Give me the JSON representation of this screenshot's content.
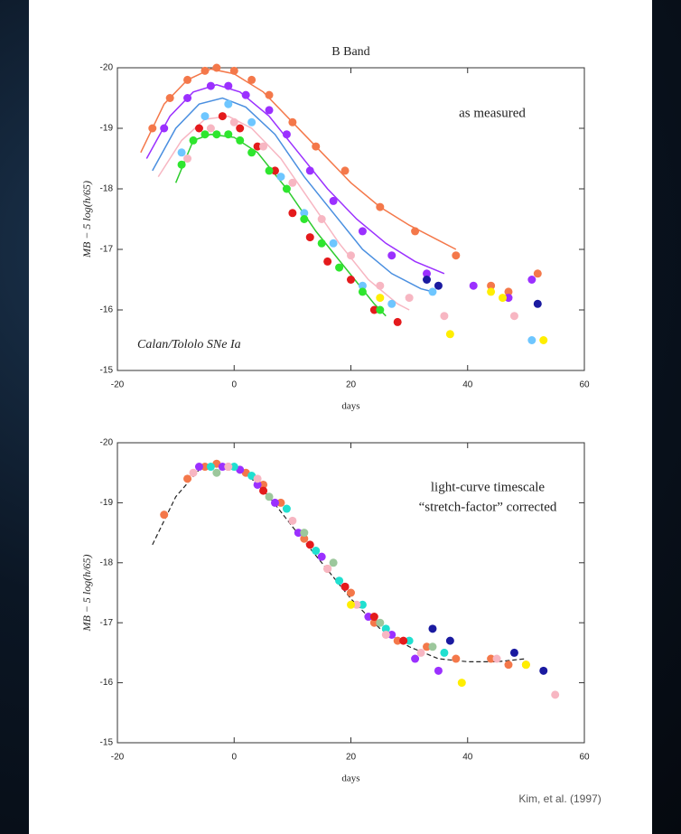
{
  "chart_data": [
    {
      "type": "scatter",
      "title": "B Band",
      "annotation": [
        "as measured"
      ],
      "note": "Calan/Tololo SNe Ia",
      "xlabel": "days",
      "ylabel": "MB − 5 log(h/65)",
      "xlim": [
        -20,
        60
      ],
      "ylim": [
        -20,
        -15
      ],
      "y_inverted": true,
      "xticks": [
        -20,
        0,
        20,
        40,
        60
      ],
      "yticks": [
        -20,
        -19,
        -18,
        -17,
        -16,
        -15
      ],
      "series": [
        {
          "kind": "line",
          "color": "#f4784a",
          "x": [
            -16,
            -12,
            -8,
            -4,
            0,
            5,
            10,
            15,
            20,
            25,
            30,
            35,
            38
          ],
          "values": [
            -18.6,
            -19.4,
            -19.8,
            -19.98,
            -19.9,
            -19.6,
            -19.1,
            -18.6,
            -18.1,
            -17.7,
            -17.4,
            -17.15,
            -17.0
          ]
        },
        {
          "kind": "line",
          "color": "#9b30ff",
          "x": [
            -15,
            -11,
            -7,
            -3,
            1,
            6,
            11,
            16,
            21,
            26,
            31,
            36
          ],
          "values": [
            -18.5,
            -19.2,
            -19.6,
            -19.72,
            -19.6,
            -19.2,
            -18.6,
            -18.0,
            -17.5,
            -17.1,
            -16.8,
            -16.6
          ]
        },
        {
          "kind": "line",
          "color": "#4a8fe0",
          "x": [
            -14,
            -10,
            -6,
            -2,
            2,
            7,
            12,
            17,
            22,
            27,
            32,
            34
          ],
          "values": [
            -18.3,
            -19.0,
            -19.4,
            -19.5,
            -19.35,
            -18.9,
            -18.2,
            -17.6,
            -17.0,
            -16.6,
            -16.35,
            -16.3
          ]
        },
        {
          "kind": "line",
          "color": "#f7b6c2",
          "x": [
            -13,
            -9,
            -5,
            -1,
            3,
            8,
            13,
            18,
            23,
            28,
            30
          ],
          "values": [
            -18.2,
            -18.8,
            -19.15,
            -19.2,
            -19.0,
            -18.5,
            -17.8,
            -17.1,
            -16.5,
            -16.1,
            -16.0
          ]
        },
        {
          "kind": "line",
          "color": "#2ecc2e",
          "x": [
            -10,
            -7,
            -4,
            0,
            4,
            9,
            14,
            19,
            24,
            26
          ],
          "values": [
            -18.1,
            -18.8,
            -18.9,
            -18.85,
            -18.6,
            -18.0,
            -17.3,
            -16.7,
            -16.1,
            -15.9
          ]
        },
        {
          "kind": "points",
          "color": "#f4784a",
          "x": [
            -14,
            -11,
            -8,
            -5,
            -3,
            0,
            3,
            6,
            10,
            14,
            19,
            25,
            31,
            38,
            44,
            47,
            52
          ],
          "values": [
            -19.0,
            -19.5,
            -19.8,
            -19.95,
            -20.0,
            -19.95,
            -19.8,
            -19.55,
            -19.1,
            -18.7,
            -18.3,
            -17.7,
            -17.3,
            -16.9,
            -16.4,
            -16.3,
            -16.6
          ]
        },
        {
          "kind": "points",
          "color": "#9b30ff",
          "x": [
            -12,
            -8,
            -4,
            -1,
            2,
            6,
            9,
            13,
            17,
            22,
            27,
            33,
            41,
            47,
            51
          ],
          "values": [
            -19.0,
            -19.5,
            -19.7,
            -19.7,
            -19.55,
            -19.3,
            -18.9,
            -18.3,
            -17.8,
            -17.3,
            -16.9,
            -16.6,
            -16.4,
            -16.2,
            -16.5
          ]
        },
        {
          "kind": "points",
          "color": "#e41a1c",
          "x": [
            -6,
            -2,
            1,
            4,
            7,
            10,
            13,
            16,
            20,
            24,
            28
          ],
          "values": [
            -19.0,
            -19.2,
            -19.0,
            -18.7,
            -18.3,
            -17.6,
            -17.2,
            -16.8,
            -16.5,
            -16.0,
            -15.8
          ]
        },
        {
          "kind": "points",
          "color": "#6ec6ff",
          "x": [
            -9,
            -5,
            -1,
            3,
            8,
            12,
            17,
            22,
            27,
            34,
            51
          ],
          "values": [
            -18.6,
            -19.2,
            -19.4,
            -19.1,
            -18.2,
            -17.6,
            -17.1,
            -16.4,
            -16.1,
            -16.3,
            -15.5
          ]
        },
        {
          "kind": "points",
          "color": "#f7b6c2",
          "x": [
            -8,
            -4,
            0,
            5,
            10,
            15,
            20,
            25,
            30,
            36,
            48
          ],
          "values": [
            -18.5,
            -19.0,
            -19.1,
            -18.7,
            -18.1,
            -17.5,
            -16.9,
            -16.4,
            -16.2,
            -15.9,
            -15.9
          ]
        },
        {
          "kind": "points",
          "color": "#2ee62e",
          "x": [
            -9,
            -7,
            -5,
            -3,
            -1,
            1,
            3,
            6,
            9,
            12,
            15,
            18,
            22,
            25
          ],
          "values": [
            -18.4,
            -18.8,
            -18.9,
            -18.9,
            -18.9,
            -18.8,
            -18.6,
            -18.3,
            -18.0,
            -17.5,
            -17.1,
            -16.7,
            -16.3,
            -16.0
          ]
        },
        {
          "kind": "points",
          "color": "#ffee00",
          "x": [
            25,
            37,
            44,
            46,
            53
          ],
          "values": [
            -16.2,
            -15.6,
            -16.3,
            -16.2,
            -15.5
          ]
        },
        {
          "kind": "points",
          "color": "#1a1aa0",
          "x": [
            33,
            35,
            52
          ],
          "values": [
            -16.5,
            -16.4,
            -16.1
          ]
        }
      ]
    },
    {
      "type": "scatter",
      "annotation": [
        "light-curve timescale",
        "“stretch-factor” corrected"
      ],
      "xlabel": "days",
      "ylabel": "MB − 5 log(h/65)",
      "xlim": [
        -20,
        60
      ],
      "ylim": [
        -20,
        -15
      ],
      "y_inverted": true,
      "xticks": [
        -20,
        0,
        20,
        40,
        60
      ],
      "yticks": [
        -20,
        -19,
        -18,
        -17,
        -16,
        -15
      ],
      "series": [
        {
          "kind": "line",
          "dash": true,
          "color": "#222222",
          "x": [
            -14,
            -10,
            -6,
            -3,
            0,
            3,
            6,
            10,
            15,
            20,
            25,
            30,
            35,
            40,
            45,
            50
          ],
          "values": [
            -18.3,
            -19.1,
            -19.55,
            -19.65,
            -19.6,
            -19.4,
            -19.1,
            -18.6,
            -18.0,
            -17.4,
            -16.9,
            -16.6,
            -16.4,
            -16.35,
            -16.35,
            -16.4
          ]
        },
        {
          "kind": "points",
          "color": "#f4784a",
          "x": [
            -12,
            -8,
            -5,
            -3,
            -1,
            2,
            5,
            8,
            12,
            16,
            20,
            24,
            28,
            33,
            38,
            44,
            47,
            50
          ],
          "values": [
            -18.8,
            -19.4,
            -19.6,
            -19.65,
            -19.6,
            -19.5,
            -19.3,
            -19.0,
            -18.4,
            -17.9,
            -17.5,
            -17.0,
            -16.7,
            -16.6,
            -16.4,
            -16.4,
            -16.3,
            -16.3
          ]
        },
        {
          "kind": "points",
          "color": "#9b30ff",
          "x": [
            -6,
            -2,
            1,
            4,
            7,
            11,
            15,
            19,
            23,
            27,
            31,
            35
          ],
          "values": [
            -19.6,
            -19.6,
            -19.55,
            -19.3,
            -19.0,
            -18.5,
            -18.1,
            -17.6,
            -17.1,
            -16.8,
            -16.4,
            -16.2
          ]
        },
        {
          "kind": "points",
          "color": "#20e0d0",
          "x": [
            -4,
            0,
            3,
            9,
            14,
            18,
            22,
            26,
            30,
            36
          ],
          "values": [
            -19.6,
            -19.6,
            -19.45,
            -18.9,
            -18.2,
            -17.7,
            -17.3,
            -16.9,
            -16.7,
            -16.5
          ]
        },
        {
          "kind": "points",
          "color": "#f7b6c2",
          "x": [
            -7,
            -1,
            4,
            10,
            16,
            21,
            26,
            32,
            45,
            55
          ],
          "values": [
            -19.5,
            -19.6,
            -19.4,
            -18.7,
            -17.9,
            -17.3,
            -16.8,
            -16.5,
            -16.4,
            -15.8
          ]
        },
        {
          "kind": "points",
          "color": "#9cc79c",
          "x": [
            -3,
            6,
            12,
            17,
            25,
            34
          ],
          "values": [
            -19.5,
            -19.1,
            -18.5,
            -18.0,
            -17.0,
            -16.6
          ]
        },
        {
          "kind": "points",
          "color": "#e41a1c",
          "x": [
            5,
            13,
            19,
            24,
            29
          ],
          "values": [
            -19.2,
            -18.3,
            -17.6,
            -17.1,
            -16.7
          ]
        },
        {
          "kind": "points",
          "color": "#1a1aa0",
          "x": [
            34,
            37,
            48,
            53
          ],
          "values": [
            -16.9,
            -16.7,
            -16.5,
            -16.2
          ]
        },
        {
          "kind": "points",
          "color": "#ffee00",
          "x": [
            20,
            39,
            50
          ],
          "values": [
            -17.3,
            -16.0,
            -16.3
          ]
        }
      ]
    }
  ],
  "credit": "Kim, et al. (1997)"
}
